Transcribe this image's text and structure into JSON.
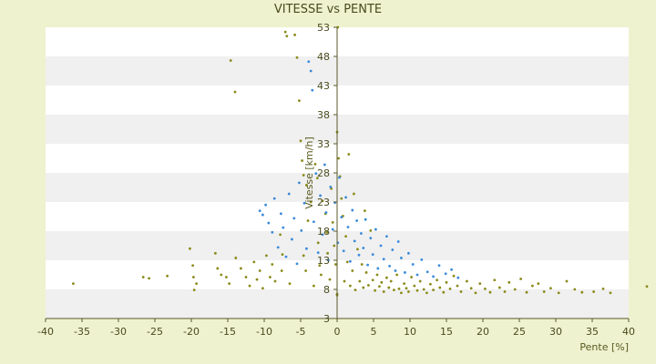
{
  "colors": {
    "background": "#eef2cf",
    "plot_band_light": "#ffffff",
    "plot_band_dark": "#f0f0f0",
    "axis": "#5a5a2a",
    "series_olive": "#8a8a1a",
    "series_blue": "#3a8ad8"
  },
  "chart_data": {
    "type": "scatter",
    "title": "VITESSE vs PENTE",
    "xlabel": "Pente [%]",
    "ylabel": "Vitesse [km/h]",
    "xlim": [
      -40,
      40
    ],
    "ylim": [
      3,
      53
    ],
    "xticks": [
      -40,
      -35,
      -30,
      -25,
      -20,
      -15,
      -10,
      -5,
      0,
      5,
      10,
      15,
      20,
      25,
      30,
      35,
      40
    ],
    "yticks": [
      3,
      8,
      13,
      18,
      23,
      28,
      33,
      38,
      43,
      48,
      53
    ],
    "grid": "horizontal-bands",
    "legend": "none",
    "series": [
      {
        "color": "#8a8a1a",
        "points": [
          [
            -36.2,
            9.0
          ],
          [
            -26.6,
            10.1
          ],
          [
            -25.8,
            9.9
          ],
          [
            -23.3,
            10.3
          ],
          [
            -20.2,
            15.0
          ],
          [
            -19.8,
            12.1
          ],
          [
            -19.7,
            10.1
          ],
          [
            -19.3,
            9.0
          ],
          [
            -19.6,
            7.9
          ],
          [
            -16.7,
            14.2
          ],
          [
            -16.4,
            11.6
          ],
          [
            -15.9,
            10.5
          ],
          [
            -15.2,
            10.1
          ],
          [
            -14.8,
            9.0
          ],
          [
            -14.6,
            47.3
          ],
          [
            -14.0,
            41.9
          ],
          [
            -13.9,
            13.4
          ],
          [
            -13.2,
            11.6
          ],
          [
            -12.5,
            10.1
          ],
          [
            -12.0,
            8.6
          ],
          [
            -11.4,
            12.7
          ],
          [
            -11.0,
            9.7
          ],
          [
            -10.6,
            11.2
          ],
          [
            -10.2,
            8.2
          ],
          [
            -9.7,
            13.8
          ],
          [
            -9.2,
            10.1
          ],
          [
            -8.9,
            12.3
          ],
          [
            -8.5,
            9.4
          ],
          [
            -7.8,
            17.4
          ],
          [
            -7.5,
            14.0
          ],
          [
            -7.6,
            11.2
          ],
          [
            -7.1,
            52.2
          ],
          [
            -6.9,
            51.5
          ],
          [
            -6.5,
            9.0
          ],
          [
            -5.8,
            51.7
          ],
          [
            -5.5,
            47.8
          ],
          [
            -5.2,
            40.4
          ],
          [
            -5.0,
            33.5
          ],
          [
            -4.8,
            30.1
          ],
          [
            -4.6,
            27.6
          ],
          [
            -4.6,
            13.8
          ],
          [
            -4.2,
            25.9
          ],
          [
            -4.3,
            11.2
          ],
          [
            -4.0,
            19.8
          ],
          [
            -3.6,
            23.0
          ],
          [
            -3.2,
            8.6
          ],
          [
            -3.0,
            29.5
          ],
          [
            -2.7,
            27.1
          ],
          [
            -2.6,
            16.0
          ],
          [
            -2.4,
            12.1
          ],
          [
            -2.2,
            10.5
          ],
          [
            -2.0,
            23.2
          ],
          [
            -1.6,
            21.0
          ],
          [
            -1.4,
            17.8
          ],
          [
            -1.3,
            14.2
          ],
          [
            -1.0,
            9.7
          ],
          [
            -0.8,
            25.3
          ],
          [
            -0.6,
            19.5
          ],
          [
            -0.4,
            15.5
          ],
          [
            -0.2,
            12.3
          ],
          [
            0.1,
            53.0
          ],
          [
            0.0,
            35.0
          ],
          [
            0.0,
            7.2
          ],
          [
            0.0,
            7.0
          ],
          [
            0.2,
            30.5
          ],
          [
            0.4,
            27.4
          ],
          [
            0.6,
            23.6
          ],
          [
            0.8,
            20.6
          ],
          [
            1.0,
            9.4
          ],
          [
            1.2,
            17.1
          ],
          [
            1.4,
            12.7
          ],
          [
            1.6,
            31.2
          ],
          [
            1.8,
            8.6
          ],
          [
            2.1,
            11.2
          ],
          [
            2.3,
            24.4
          ],
          [
            2.5,
            7.9
          ],
          [
            2.8,
            14.9
          ],
          [
            3.1,
            9.4
          ],
          [
            3.4,
            12.3
          ],
          [
            3.6,
            8.3
          ],
          [
            3.8,
            21.5
          ],
          [
            4.0,
            10.9
          ],
          [
            4.3,
            8.7
          ],
          [
            4.6,
            18.1
          ],
          [
            4.9,
            9.6
          ],
          [
            5.2,
            7.8
          ],
          [
            5.5,
            10.5
          ],
          [
            5.8,
            8.5
          ],
          [
            6.1,
            9.2
          ],
          [
            6.4,
            7.6
          ],
          [
            6.8,
            10.0
          ],
          [
            7.1,
            8.3
          ],
          [
            7.4,
            9.4
          ],
          [
            7.8,
            7.9
          ],
          [
            8.2,
            10.5
          ],
          [
            8.5,
            8.1
          ],
          [
            8.8,
            7.4
          ],
          [
            9.2,
            9.0
          ],
          [
            9.5,
            8.2
          ],
          [
            9.8,
            7.6
          ],
          [
            10.2,
            10.1
          ],
          [
            10.6,
            8.6
          ],
          [
            11.0,
            7.8
          ],
          [
            11.4,
            9.4
          ],
          [
            11.9,
            8.0
          ],
          [
            12.3,
            7.4
          ],
          [
            12.8,
            8.9
          ],
          [
            13.2,
            7.9
          ],
          [
            13.7,
            9.6
          ],
          [
            14.1,
            8.3
          ],
          [
            14.6,
            7.5
          ],
          [
            15.0,
            9.2
          ],
          [
            15.5,
            8.1
          ],
          [
            16.0,
            10.3
          ],
          [
            16.5,
            8.6
          ],
          [
            17.0,
            7.6
          ],
          [
            17.8,
            9.4
          ],
          [
            18.4,
            8.2
          ],
          [
            19.0,
            7.4
          ],
          [
            19.6,
            9.0
          ],
          [
            20.3,
            8.1
          ],
          [
            21.0,
            7.5
          ],
          [
            21.6,
            9.6
          ],
          [
            22.3,
            8.3
          ],
          [
            23.0,
            7.6
          ],
          [
            23.6,
            9.2
          ],
          [
            24.4,
            8.0
          ],
          [
            25.2,
            9.8
          ],
          [
            26.0,
            7.5
          ],
          [
            26.8,
            8.6
          ],
          [
            27.6,
            9.0
          ],
          [
            28.4,
            7.6
          ],
          [
            29.3,
            8.2
          ],
          [
            30.4,
            7.4
          ],
          [
            31.5,
            9.4
          ],
          [
            32.6,
            8.0
          ],
          [
            33.6,
            7.5
          ],
          [
            35.2,
            7.6
          ],
          [
            36.5,
            8.1
          ],
          [
            37.5,
            7.4
          ],
          [
            42.5,
            8.5
          ]
        ]
      },
      {
        "color": "#3a8ad8",
        "points": [
          [
            -10.6,
            21.5
          ],
          [
            -10.2,
            20.8
          ],
          [
            -9.8,
            22.5
          ],
          [
            -9.4,
            19.4
          ],
          [
            -8.9,
            17.8
          ],
          [
            -8.6,
            23.6
          ],
          [
            -8.1,
            15.2
          ],
          [
            -7.7,
            21.0
          ],
          [
            -7.4,
            18.6
          ],
          [
            -7.0,
            13.6
          ],
          [
            -6.6,
            24.4
          ],
          [
            -6.2,
            16.6
          ],
          [
            -5.9,
            20.2
          ],
          [
            -5.5,
            12.4
          ],
          [
            -5.2,
            26.3
          ],
          [
            -4.9,
            18.1
          ],
          [
            -4.5,
            22.8
          ],
          [
            -4.2,
            15.0
          ],
          [
            -3.9,
            47.1
          ],
          [
            -3.6,
            45.5
          ],
          [
            -3.4,
            42.2
          ],
          [
            -3.2,
            19.6
          ],
          [
            -2.9,
            27.9
          ],
          [
            -2.6,
            14.3
          ],
          [
            -2.3,
            24.1
          ],
          [
            -2.0,
            17.4
          ],
          [
            -1.7,
            29.4
          ],
          [
            -1.5,
            21.2
          ],
          [
            -1.2,
            13.0
          ],
          [
            -0.9,
            25.6
          ],
          [
            -0.6,
            18.3
          ],
          [
            -0.3,
            22.9
          ],
          [
            0.1,
            16.0
          ],
          [
            0.3,
            27.2
          ],
          [
            0.6,
            20.4
          ],
          [
            0.9,
            14.6
          ],
          [
            1.2,
            23.8
          ],
          [
            1.5,
            18.7
          ],
          [
            1.8,
            12.8
          ],
          [
            2.1,
            21.6
          ],
          [
            2.4,
            16.3
          ],
          [
            2.7,
            19.8
          ],
          [
            3.0,
            13.9
          ],
          [
            3.3,
            17.6
          ],
          [
            3.6,
            15.1
          ],
          [
            3.9,
            20.0
          ],
          [
            4.2,
            12.2
          ],
          [
            4.6,
            16.8
          ],
          [
            4.9,
            14.0
          ],
          [
            5.3,
            18.3
          ],
          [
            5.6,
            11.6
          ],
          [
            6.0,
            15.5
          ],
          [
            6.4,
            13.2
          ],
          [
            6.8,
            17.1
          ],
          [
            7.2,
            12.0
          ],
          [
            7.6,
            14.8
          ],
          [
            8.0,
            11.2
          ],
          [
            8.4,
            16.2
          ],
          [
            8.8,
            13.4
          ],
          [
            9.3,
            10.9
          ],
          [
            9.8,
            14.2
          ],
          [
            10.4,
            12.3
          ],
          [
            11.0,
            10.5
          ],
          [
            11.6,
            13.1
          ],
          [
            12.4,
            11.0
          ],
          [
            13.2,
            10.2
          ],
          [
            14.0,
            12.1
          ],
          [
            14.9,
            10.7
          ],
          [
            15.7,
            11.4
          ],
          [
            16.6,
            10.0
          ]
        ]
      }
    ]
  }
}
